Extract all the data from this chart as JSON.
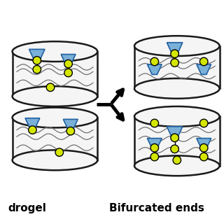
{
  "bg_color": "#ffffff",
  "cylinder_edge_color": "#1a1a1a",
  "cylinder_fill_color": "#f5f5f5",
  "node_color": "#d4e600",
  "node_edge_color": "#000000",
  "funnel_fill_color": "#7ab0d8",
  "funnel_edge_color": "#2060a0",
  "wave_color": "#707070",
  "line_color": "#000000",
  "arrow_color": "#000000",
  "label_left": "drogel",
  "label_right": "Bifurcated ends",
  "label_fontsize": 11,
  "label_fontweight": "bold",
  "fig_w": 3.2,
  "fig_h": 3.2,
  "dpi": 100
}
